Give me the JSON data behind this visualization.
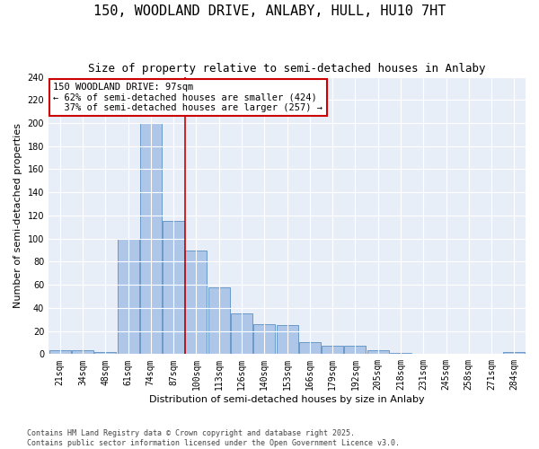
{
  "title": "150, WOODLAND DRIVE, ANLABY, HULL, HU10 7HT",
  "subtitle": "Size of property relative to semi-detached houses in Anlaby",
  "xlabel": "Distribution of semi-detached houses by size in Anlaby",
  "ylabel": "Number of semi-detached properties",
  "categories": [
    "21sqm",
    "34sqm",
    "48sqm",
    "61sqm",
    "74sqm",
    "87sqm",
    "100sqm",
    "113sqm",
    "126sqm",
    "140sqm",
    "153sqm",
    "166sqm",
    "179sqm",
    "192sqm",
    "205sqm",
    "218sqm",
    "231sqm",
    "245sqm",
    "258sqm",
    "271sqm",
    "284sqm"
  ],
  "values": [
    3,
    3,
    2,
    100,
    200,
    115,
    90,
    58,
    35,
    26,
    25,
    10,
    7,
    7,
    3,
    1,
    0,
    0,
    0,
    0,
    2
  ],
  "bar_color": "#aec6e8",
  "bar_edge_color": "#5a8fc2",
  "vline_color": "#cc0000",
  "annotation_text": "150 WOODLAND DRIVE: 97sqm\n← 62% of semi-detached houses are smaller (424)\n  37% of semi-detached houses are larger (257) →",
  "annotation_box_color": "#ffffff",
  "annotation_box_edge_color": "#cc0000",
  "ylim": [
    0,
    240
  ],
  "yticks": [
    0,
    20,
    40,
    60,
    80,
    100,
    120,
    140,
    160,
    180,
    200,
    220,
    240
  ],
  "background_color": "#e8eef8",
  "footer_text": "Contains HM Land Registry data © Crown copyright and database right 2025.\nContains public sector information licensed under the Open Government Licence v3.0.",
  "title_fontsize": 11,
  "subtitle_fontsize": 9,
  "axis_label_fontsize": 8,
  "tick_fontsize": 7,
  "annotation_fontsize": 7.5,
  "footer_fontsize": 6
}
